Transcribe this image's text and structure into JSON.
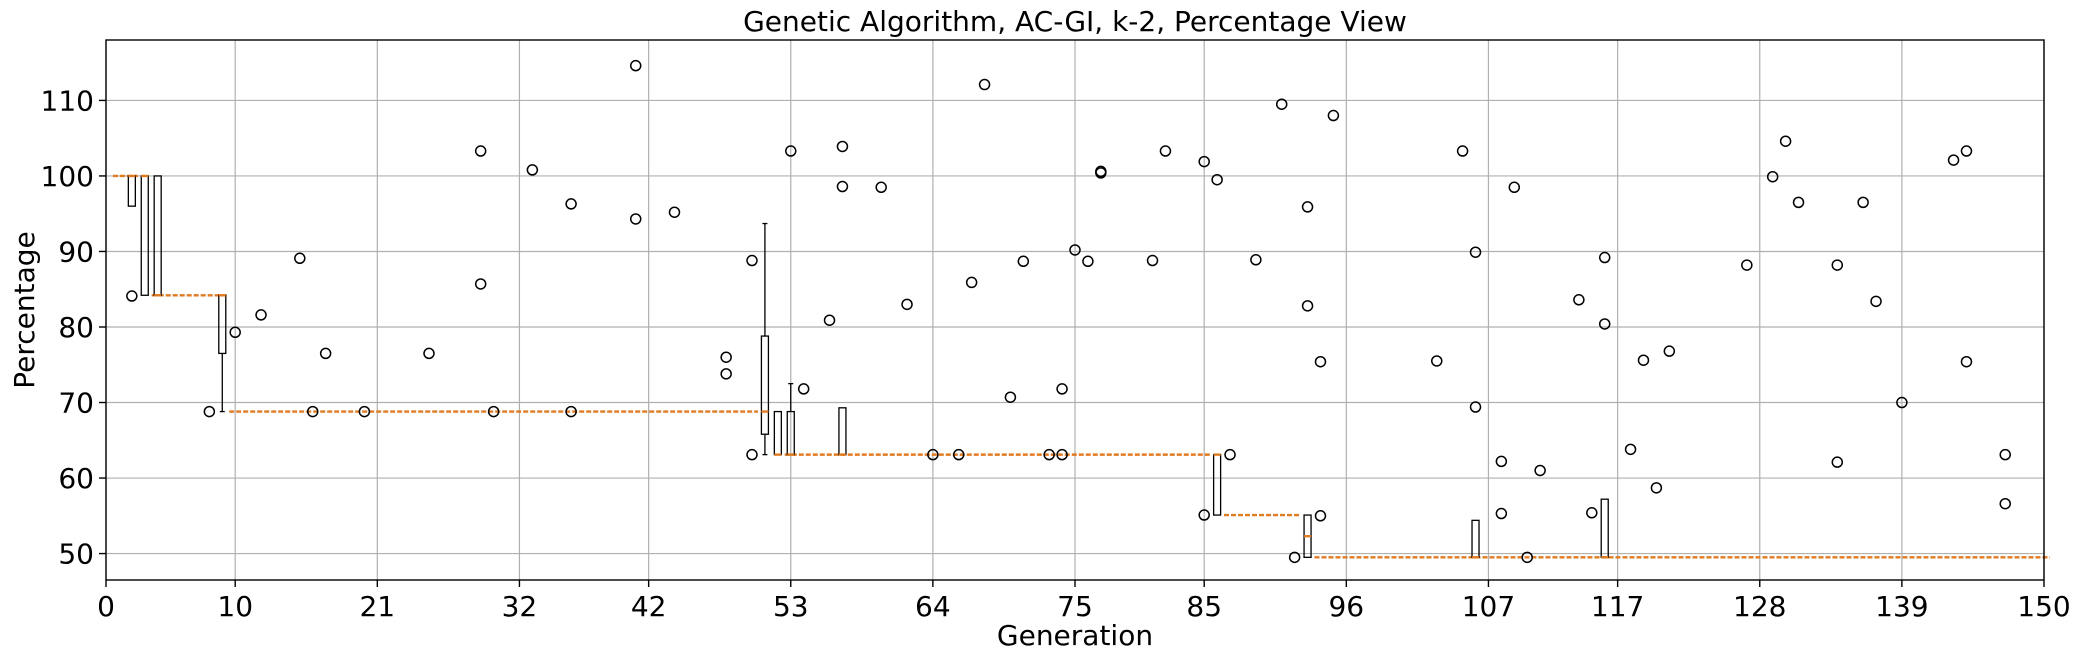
{
  "chart_data": {
    "type": "box",
    "title": "Genetic Algorithm, AC-GI, k-2, Percentage View",
    "xlabel": "Generation",
    "ylabel": "Percentage",
    "xlim": [
      0,
      150
    ],
    "ylim": [
      46.5,
      118
    ],
    "x_ticks": [
      0,
      10,
      21,
      32,
      42,
      53,
      64,
      75,
      85,
      96,
      107,
      117,
      128,
      139,
      150
    ],
    "y_ticks": [
      50,
      60,
      70,
      80,
      90,
      100,
      110
    ],
    "grid": true,
    "colors": {
      "median": "#e07b22",
      "box": "#000000",
      "grid": "#b0b0b0"
    },
    "boxes": [
      {
        "gen": 2,
        "q1": 96,
        "med": 100,
        "q3": 100,
        "wlo": 96,
        "whi": 100
      },
      {
        "gen": 3,
        "q1": 84.2,
        "med": 100,
        "q3": 100,
        "wlo": 84.2,
        "whi": 100
      },
      {
        "gen": 4,
        "q1": 84.2,
        "med": 84.2,
        "q3": 100,
        "wlo": 84.2,
        "whi": 100
      },
      {
        "gen": 9,
        "q1": 76.5,
        "med": 84.2,
        "q3": 84.2,
        "wlo": 68.8,
        "whi": 84.2
      },
      {
        "gen": 51,
        "q1": 65.8,
        "med": 68.8,
        "q3": 78.8,
        "wlo": 63.1,
        "whi": 93.7
      },
      {
        "gen": 52,
        "q1": 63.1,
        "med": 63.1,
        "q3": 68.8,
        "wlo": 63.1,
        "whi": 68.8
      },
      {
        "gen": 53,
        "q1": 63.1,
        "med": 63.1,
        "q3": 68.8,
        "wlo": 63.1,
        "whi": 72.5
      },
      {
        "gen": 57,
        "q1": 63.1,
        "med": 63.1,
        "q3": 69.3,
        "wlo": 63.1,
        "whi": 69.3
      },
      {
        "gen": 86,
        "q1": 55.1,
        "med": 63.1,
        "q3": 63.1,
        "wlo": 55.1,
        "whi": 63.1
      },
      {
        "gen": 93,
        "q1": 49.5,
        "med": 52.3,
        "q3": 55.1,
        "wlo": 49.5,
        "whi": 55.1
      },
      {
        "gen": 106,
        "q1": 49.5,
        "med": 49.5,
        "q3": 54.4,
        "wlo": 49.5,
        "whi": 54.4
      },
      {
        "gen": 116,
        "q1": 49.5,
        "med": 49.5,
        "q3": 57.2,
        "wlo": 49.5,
        "whi": 57.2
      }
    ],
    "median_segments": [
      {
        "x0": 1,
        "x1": 2,
        "y": 100
      },
      {
        "x0": 4,
        "x1": 9,
        "y": 84.2
      },
      {
        "x0": 10,
        "x1": 50,
        "y": 68.8
      },
      {
        "x0": 53,
        "x1": 85,
        "y": 63.1
      },
      {
        "x0": 87,
        "x1": 92,
        "y": 55.1
      },
      {
        "x0": 94,
        "x1": 150,
        "y": 49.5
      }
    ],
    "fliers": [
      {
        "x": 2,
        "y": 84.1
      },
      {
        "x": 8,
        "y": 68.8
      },
      {
        "x": 10,
        "y": 79.3
      },
      {
        "x": 12,
        "y": 81.6
      },
      {
        "x": 15,
        "y": 89.1
      },
      {
        "x": 16,
        "y": 68.8
      },
      {
        "x": 17,
        "y": 76.5
      },
      {
        "x": 20,
        "y": 68.8
      },
      {
        "x": 25,
        "y": 76.5
      },
      {
        "x": 29,
        "y": 103.3
      },
      {
        "x": 29,
        "y": 85.7
      },
      {
        "x": 30,
        "y": 68.8
      },
      {
        "x": 33,
        "y": 100.8
      },
      {
        "x": 36,
        "y": 96.3
      },
      {
        "x": 36,
        "y": 68.8
      },
      {
        "x": 41,
        "y": 114.6
      },
      {
        "x": 41,
        "y": 94.3
      },
      {
        "x": 44,
        "y": 95.2
      },
      {
        "x": 48,
        "y": 76.0
      },
      {
        "x": 48,
        "y": 73.8
      },
      {
        "x": 50,
        "y": 88.8
      },
      {
        "x": 50,
        "y": 63.1
      },
      {
        "x": 53,
        "y": 103.3
      },
      {
        "x": 54,
        "y": 71.8
      },
      {
        "x": 56,
        "y": 80.9
      },
      {
        "x": 57,
        "y": 103.9
      },
      {
        "x": 57,
        "y": 98.6
      },
      {
        "x": 60,
        "y": 98.5
      },
      {
        "x": 62,
        "y": 83.0
      },
      {
        "x": 64,
        "y": 63.1
      },
      {
        "x": 66,
        "y": 63.1
      },
      {
        "x": 67,
        "y": 85.9
      },
      {
        "x": 68,
        "y": 112.1
      },
      {
        "x": 70,
        "y": 70.7
      },
      {
        "x": 71,
        "y": 88.7
      },
      {
        "x": 73,
        "y": 63.1
      },
      {
        "x": 74,
        "y": 71.8
      },
      {
        "x": 74,
        "y": 63.1
      },
      {
        "x": 75,
        "y": 90.2
      },
      {
        "x": 76,
        "y": 88.7
      },
      {
        "x": 77,
        "y": 100.6
      },
      {
        "x": 77,
        "y": 100.4
      },
      {
        "x": 81,
        "y": 88.8
      },
      {
        "x": 82,
        "y": 103.3
      },
      {
        "x": 85,
        "y": 101.9
      },
      {
        "x": 85,
        "y": 55.1
      },
      {
        "x": 86,
        "y": 99.5
      },
      {
        "x": 87,
        "y": 63.1
      },
      {
        "x": 89,
        "y": 88.9
      },
      {
        "x": 91,
        "y": 109.5
      },
      {
        "x": 92,
        "y": 49.5
      },
      {
        "x": 93,
        "y": 95.9
      },
      {
        "x": 93,
        "y": 82.8
      },
      {
        "x": 94,
        "y": 75.4
      },
      {
        "x": 94,
        "y": 55.0
      },
      {
        "x": 95,
        "y": 108.0
      },
      {
        "x": 103,
        "y": 75.5
      },
      {
        "x": 105,
        "y": 103.3
      },
      {
        "x": 106,
        "y": 89.9
      },
      {
        "x": 106,
        "y": 69.4
      },
      {
        "x": 108,
        "y": 62.2
      },
      {
        "x": 108,
        "y": 55.3
      },
      {
        "x": 109,
        "y": 98.5
      },
      {
        "x": 110,
        "y": 49.5
      },
      {
        "x": 111,
        "y": 61.0
      },
      {
        "x": 114,
        "y": 83.6
      },
      {
        "x": 115,
        "y": 55.4
      },
      {
        "x": 116,
        "y": 89.2
      },
      {
        "x": 116,
        "y": 80.4
      },
      {
        "x": 118,
        "y": 63.8
      },
      {
        "x": 119,
        "y": 75.6
      },
      {
        "x": 120,
        "y": 58.7
      },
      {
        "x": 121,
        "y": 76.8
      },
      {
        "x": 127,
        "y": 88.2
      },
      {
        "x": 129,
        "y": 99.9
      },
      {
        "x": 130,
        "y": 104.6
      },
      {
        "x": 131,
        "y": 96.5
      },
      {
        "x": 134,
        "y": 88.2
      },
      {
        "x": 134,
        "y": 62.1
      },
      {
        "x": 136,
        "y": 96.5
      },
      {
        "x": 137,
        "y": 83.4
      },
      {
        "x": 139,
        "y": 70.0
      },
      {
        "x": 143,
        "y": 102.1
      },
      {
        "x": 144,
        "y": 103.3
      },
      {
        "x": 144,
        "y": 75.4
      },
      {
        "x": 147,
        "y": 63.1
      },
      {
        "x": 147,
        "y": 56.6
      }
    ]
  }
}
